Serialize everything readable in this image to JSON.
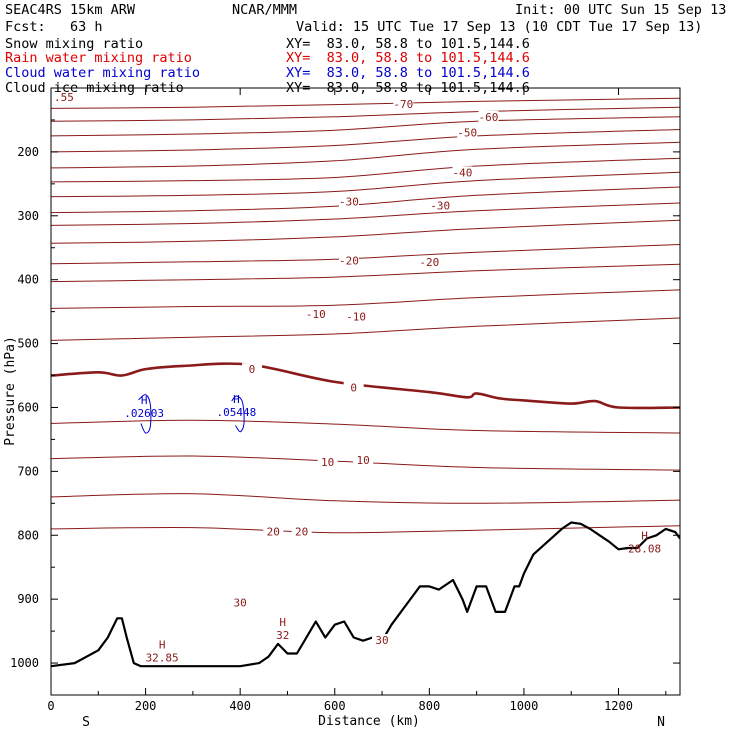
{
  "header": {
    "model": "SEAC4RS 15km ARW",
    "center": "NCAR/MMM",
    "init": "Init: 00 UTC Sun 15 Sep 13",
    "fcst": "Fcst:   63 h",
    "valid": "Valid: 15 UTC Tue 17 Sep 13 (10 CDT Tue 17 Sep 13)"
  },
  "fields": [
    {
      "label": "Snow mixing ratio",
      "xy": "XY=  83.0, 58.8 to 101.5,144.6",
      "color": "#000000"
    },
    {
      "label": "Rain water mixing ratio",
      "xy": "XY=  83.0, 58.8 to 101.5,144.6",
      "color": "#e00000"
    },
    {
      "label": "Cloud water mixing ratio",
      "xy": "XY=  83.0, 58.8 to 101.5,144.6",
      "color": "#0000d0"
    },
    {
      "label": "Cloud ice mixing ratio",
      "xy": "XY=  83.0, 58.8 to 101.5,144.6",
      "color": "#000000"
    }
  ],
  "chart_data": {
    "type": "contour",
    "xlabel": "Distance (km)",
    "ylabel": "Pressure (hPa)",
    "x_ticks": [
      0,
      200,
      400,
      600,
      800,
      1000,
      1200
    ],
    "y_ticks": [
      200,
      300,
      400,
      500,
      600,
      700,
      800,
      900,
      1000
    ],
    "xlim": [
      0,
      1330
    ],
    "ylim": [
      1050,
      100
    ],
    "y_axis_reversed": true,
    "left_endpoint": "S",
    "right_endpoint": "N",
    "corner_label": ".55",
    "temperature_contour_color": "#8b1a1a",
    "contour_labels": [
      {
        "text": "-70",
        "x": 745,
        "p": 125
      },
      {
        "text": "-60",
        "x": 925,
        "p": 145
      },
      {
        "text": "-50",
        "x": 880,
        "p": 170
      },
      {
        "text": "-40",
        "x": 870,
        "p": 232
      },
      {
        "text": "-30",
        "x": 630,
        "p": 278
      },
      {
        "text": "-30",
        "x": 823,
        "p": 284
      },
      {
        "text": "-20",
        "x": 630,
        "p": 370
      },
      {
        "text": "-20",
        "x": 800,
        "p": 372
      },
      {
        "text": "-10",
        "x": 560,
        "p": 454
      },
      {
        "text": "-10",
        "x": 645,
        "p": 458
      },
      {
        "text": "0",
        "x": 425,
        "p": 540
      },
      {
        "text": "0",
        "x": 640,
        "p": 569
      },
      {
        "text": "10",
        "x": 585,
        "p": 685
      },
      {
        "text": "10",
        "x": 660,
        "p": 682
      },
      {
        "text": "20",
        "x": 470,
        "p": 794
      },
      {
        "text": "20",
        "x": 530,
        "p": 794
      },
      {
        "text": "30",
        "x": 400,
        "p": 905
      },
      {
        "text": "30",
        "x": 700,
        "p": 964
      }
    ],
    "extrema": [
      {
        "text": "H",
        "value": ".02603",
        "x": 197,
        "p": 598,
        "color": "#0000d0"
      },
      {
        "text": "H",
        "value": ".05448",
        "x": 392,
        "p": 596,
        "color": "#0000d0"
      },
      {
        "text": "H",
        "value": "32.85",
        "x": 235,
        "p": 980,
        "color": "#8b1a1a"
      },
      {
        "text": "H",
        "value": "32",
        "x": 490,
        "p": 945,
        "color": "#8b1a1a"
      },
      {
        "text": "H",
        "value": "28.08",
        "x": 1255,
        "p": 810,
        "color": "#8b1a1a"
      }
    ],
    "series": [
      {
        "name": "-70",
        "x": [
          0,
          300,
          600,
          900,
          1330
        ],
        "p": [
          132,
          130,
          126,
          121,
          116
        ],
        "width": 1
      },
      {
        "name": "-65",
        "x": [
          0,
          300,
          600,
          900,
          1330
        ],
        "p": [
          152,
          150,
          145,
          137,
          130
        ],
        "width": 1
      },
      {
        "name": "-60",
        "x": [
          0,
          300,
          600,
          900,
          1330
        ],
        "p": [
          175,
          172,
          166,
          152,
          145
        ],
        "width": 1
      },
      {
        "name": "-55",
        "x": [
          0,
          300,
          600,
          900,
          1330
        ],
        "p": [
          200,
          197,
          190,
          175,
          165
        ],
        "width": 1
      },
      {
        "name": "-50",
        "x": [
          0,
          300,
          600,
          900,
          1330
        ],
        "p": [
          225,
          222,
          214,
          196,
          185
        ],
        "width": 1
      },
      {
        "name": "-45",
        "x": [
          0,
          300,
          600,
          900,
          1330
        ],
        "p": [
          247,
          245,
          240,
          222,
          210
        ],
        "width": 1
      },
      {
        "name": "-40",
        "x": [
          0,
          300,
          600,
          900,
          1330
        ],
        "p": [
          270,
          268,
          262,
          245,
          232
        ],
        "width": 1
      },
      {
        "name": "-35",
        "x": [
          0,
          300,
          600,
          900,
          1330
        ],
        "p": [
          295,
          292,
          285,
          268,
          255
        ],
        "width": 1
      },
      {
        "name": "-30",
        "x": [
          0,
          300,
          600,
          900,
          1330
        ],
        "p": [
          315,
          312,
          305,
          292,
          280
        ],
        "width": 1
      },
      {
        "name": "-25",
        "x": [
          0,
          300,
          600,
          900,
          1330
        ],
        "p": [
          343,
          340,
          333,
          320,
          307
        ],
        "width": 1
      },
      {
        "name": "-20",
        "x": [
          0,
          300,
          600,
          900,
          1330
        ],
        "p": [
          375,
          372,
          368,
          357,
          345
        ],
        "width": 1
      },
      {
        "name": "-15",
        "x": [
          0,
          300,
          600,
          900,
          1330
        ],
        "p": [
          403,
          400,
          396,
          386,
          376
        ],
        "width": 1
      },
      {
        "name": "-10",
        "x": [
          0,
          300,
          600,
          900,
          1330
        ],
        "p": [
          445,
          442,
          440,
          428,
          416
        ],
        "width": 1
      },
      {
        "name": "-5",
        "x": [
          0,
          300,
          600,
          900,
          1330
        ],
        "p": [
          495,
          490,
          485,
          473,
          460
        ],
        "width": 1
      },
      {
        "name": "0",
        "x": [
          0,
          100,
          150,
          200,
          280,
          420,
          600,
          800,
          880,
          900,
          950,
          1000,
          1100,
          1150,
          1200,
          1330
        ],
        "p": [
          550,
          545,
          550,
          540,
          535,
          533,
          560,
          576,
          584,
          578,
          586,
          589,
          594,
          590,
          600,
          600
        ],
        "width": 2.6
      },
      {
        "name": "5",
        "x": [
          0,
          300,
          600,
          900,
          1330
        ],
        "p": [
          625,
          620,
          626,
          636,
          640
        ],
        "width": 1
      },
      {
        "name": "10",
        "x": [
          0,
          300,
          600,
          900,
          1330
        ],
        "p": [
          680,
          676,
          684,
          694,
          698
        ],
        "width": 1
      },
      {
        "name": "15",
        "x": [
          0,
          300,
          600,
          900,
          1330
        ],
        "p": [
          740,
          735,
          746,
          750,
          745
        ],
        "width": 1
      },
      {
        "name": "20",
        "x": [
          0,
          300,
          600,
          900,
          1330
        ],
        "p": [
          790,
          788,
          796,
          792,
          785
        ],
        "width": 1
      }
    ],
    "terrain": {
      "x": [
        0,
        50,
        100,
        120,
        140,
        150,
        160,
        175,
        190,
        220,
        260,
        300,
        350,
        400,
        440,
        460,
        480,
        500,
        520,
        540,
        560,
        580,
        600,
        620,
        640,
        660,
        680,
        700,
        720,
        750,
        780,
        800,
        820,
        850,
        870,
        880,
        900,
        920,
        940,
        960,
        980,
        990,
        1000,
        1020,
        1050,
        1080,
        1100,
        1120,
        1140,
        1160,
        1180,
        1200,
        1220,
        1240,
        1260,
        1280,
        1300,
        1320,
        1330
      ],
      "p": [
        1005,
        1000,
        980,
        960,
        930,
        930,
        960,
        1000,
        1005,
        1005,
        1005,
        1005,
        1005,
        1005,
        1000,
        990,
        970,
        985,
        985,
        960,
        935,
        960,
        940,
        935,
        960,
        965,
        960,
        965,
        940,
        910,
        880,
        880,
        885,
        870,
        900,
        920,
        880,
        880,
        920,
        920,
        880,
        880,
        860,
        830,
        810,
        790,
        780,
        782,
        790,
        800,
        810,
        822,
        820,
        820,
        805,
        800,
        790,
        795,
        805
      ],
      "width": 2.2
    },
    "blue_contours": [
      {
        "x": [
          185,
          200,
          210,
          210,
          200,
          190
        ],
        "p": [
          588,
          580,
          595,
          630,
          640,
          625
        ]
      },
      {
        "x": [
          382,
          392,
          405,
          408,
          400,
          390
        ],
        "p": [
          590,
          582,
          592,
          625,
          638,
          628
        ]
      }
    ]
  }
}
